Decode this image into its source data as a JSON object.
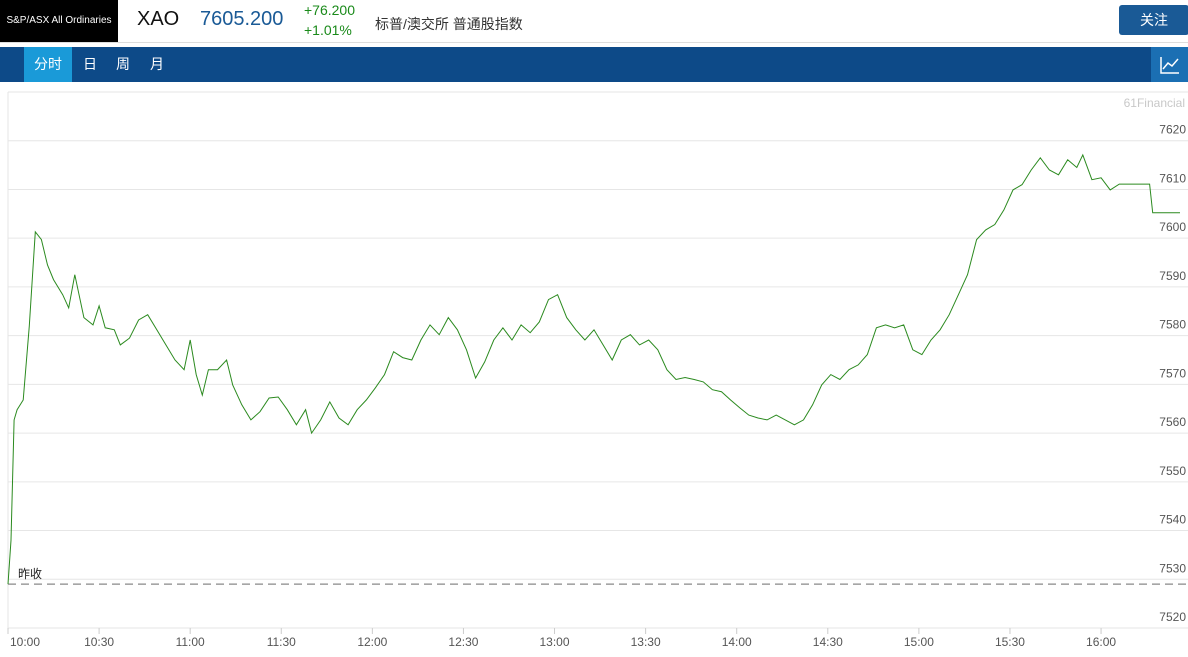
{
  "header": {
    "index_name": "S&P/ASX All Ordinaries",
    "symbol": "XAO",
    "price": "7605.200",
    "change": "+76.200",
    "change_percent": "+1.01%",
    "description": "标普/澳交所 普通股指数",
    "follow_button": "关注"
  },
  "tabs": [
    "分时",
    "日",
    "周",
    "月"
  ],
  "watermark": "61Financial",
  "chart_data": {
    "type": "line",
    "color": "#2b8a1f",
    "x": [
      "10:00",
      "10:01",
      "10:02",
      "10:03",
      "10:05",
      "10:07",
      "10:09",
      "10:11",
      "10:13",
      "10:15",
      "10:18",
      "10:20",
      "10:22",
      "10:25",
      "10:28",
      "10:30",
      "10:32",
      "10:35",
      "10:37",
      "10:40",
      "10:43",
      "10:46",
      "10:49",
      "10:52",
      "10:55",
      "10:58",
      "11:00",
      "11:02",
      "11:04",
      "11:06",
      "11:09",
      "11:12",
      "11:14",
      "11:17",
      "11:20",
      "11:23",
      "11:26",
      "11:29",
      "11:32",
      "11:35",
      "11:38",
      "11:40",
      "11:43",
      "11:46",
      "11:49",
      "11:52",
      "11:55",
      "11:58",
      "12:01",
      "12:04",
      "12:07",
      "12:10",
      "12:13",
      "12:16",
      "12:19",
      "12:22",
      "12:25",
      "12:28",
      "12:31",
      "12:34",
      "12:37",
      "12:40",
      "12:43",
      "12:46",
      "12:49",
      "12:52",
      "12:55",
      "12:58",
      "13:01",
      "13:04",
      "13:07",
      "13:10",
      "13:13",
      "13:16",
      "13:19",
      "13:22",
      "13:25",
      "13:28",
      "13:31",
      "13:34",
      "13:37",
      "13:40",
      "13:43",
      "13:46",
      "13:49",
      "13:52",
      "13:55",
      "13:58",
      "14:01",
      "14:04",
      "14:07",
      "14:10",
      "14:13",
      "14:16",
      "14:19",
      "14:22",
      "14:25",
      "14:28",
      "14:31",
      "14:34",
      "14:37",
      "14:40",
      "14:43",
      "14:46",
      "14:49",
      "14:52",
      "14:55",
      "14:58",
      "15:01",
      "15:04",
      "15:07",
      "15:10",
      "15:13",
      "15:16",
      "15:19",
      "15:22",
      "15:25",
      "15:28",
      "15:31",
      "15:34",
      "15:37",
      "15:40",
      "15:43",
      "15:46",
      "15:49",
      "15:52",
      "15:54",
      "15:57",
      "16:00",
      "16:03",
      "16:06",
      "16:16",
      "16:17",
      "16:26"
    ],
    "values": [
      7529,
      7538,
      7562.7,
      7564.8,
      7566.8,
      7582,
      7601.3,
      7599.7,
      7594.5,
      7591.5,
      7588.4,
      7585.7,
      7592.5,
      7583.7,
      7582.2,
      7586.1,
      7581.6,
      7581.2,
      7578.1,
      7579.5,
      7583.2,
      7584.3,
      7581.2,
      7578.1,
      7575,
      7573,
      7579.1,
      7572,
      7567.8,
      7573,
      7573,
      7575,
      7569.9,
      7565.8,
      7562.7,
      7564.4,
      7567.2,
      7567.4,
      7564.8,
      7561.7,
      7564.8,
      7560,
      7562.7,
      7566.4,
      7563.1,
      7561.7,
      7564.8,
      7566.8,
      7569.3,
      7572,
      7576.7,
      7575.5,
      7575,
      7579.1,
      7582.2,
      7580.2,
      7583.7,
      7581.2,
      7577.1,
      7571.3,
      7574.6,
      7579.1,
      7581.6,
      7579.1,
      7582.2,
      7580.6,
      7582.8,
      7587.4,
      7588.4,
      7583.7,
      7581.2,
      7579.1,
      7581.2,
      7578.1,
      7575,
      7579.1,
      7580.2,
      7578.1,
      7579.1,
      7577.1,
      7573,
      7571,
      7571.4,
      7571,
      7570.5,
      7568.9,
      7568.5,
      7566.8,
      7565.2,
      7563.7,
      7563.1,
      7562.7,
      7563.7,
      7562.7,
      7561.7,
      7562.7,
      7565.8,
      7569.9,
      7572,
      7571,
      7573,
      7574,
      7576.1,
      7581.6,
      7582.2,
      7581.6,
      7582.2,
      7577.1,
      7576.1,
      7579.1,
      7581.2,
      7584.3,
      7588.4,
      7592.5,
      7599.7,
      7601.7,
      7602.8,
      7605.8,
      7609.9,
      7611,
      7614,
      7616.5,
      7614,
      7613,
      7616.1,
      7614.5,
      7617.1,
      7612,
      7612.4,
      7609.9,
      7611.1,
      7611.1,
      7605.2,
      7605.2
    ],
    "xlim": [
      "10:00",
      "16:26"
    ],
    "xticks": [
      "10:00",
      "10:30",
      "11:00",
      "11:30",
      "12:00",
      "12:30",
      "13:00",
      "13:30",
      "14:00",
      "14:30",
      "15:00",
      "15:30",
      "16:00"
    ],
    "ylim": [
      7520,
      7630
    ],
    "yticks": [
      7520,
      7530,
      7540,
      7550,
      7560,
      7570,
      7580,
      7590,
      7600,
      7610,
      7620
    ],
    "grid": true,
    "reference_line": {
      "value": 7529,
      "label": "昨收"
    }
  }
}
